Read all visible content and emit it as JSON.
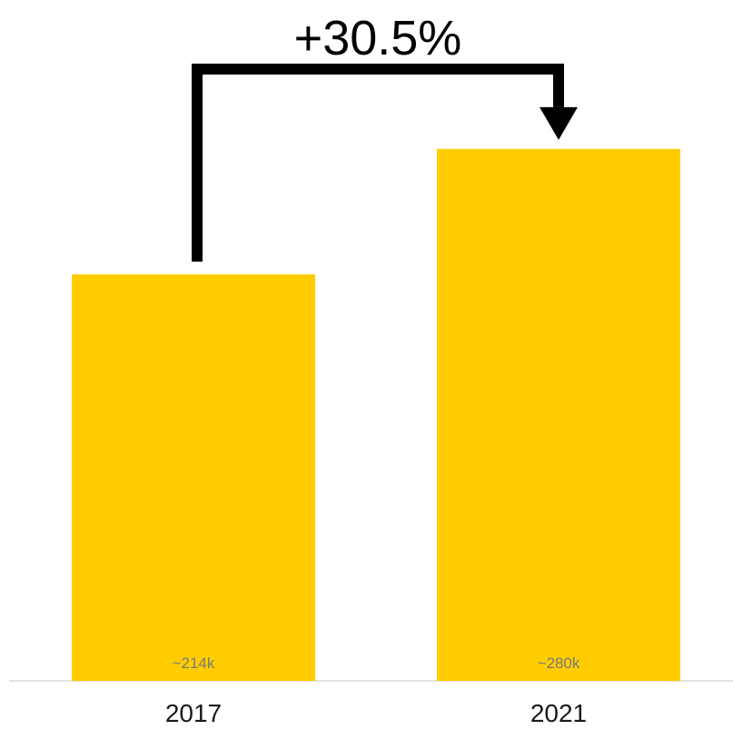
{
  "chart_data": {
    "type": "bar",
    "categories": [
      "2017",
      "2021"
    ],
    "values": [
      214,
      280
    ],
    "value_labels": [
      "~214k",
      "~280k"
    ],
    "annotation": "+30.5%",
    "ylim": [
      0,
      345
    ],
    "grid": false,
    "legend": "none",
    "colors": {
      "bar": "#FFCC00",
      "value_label": "#7a7a7a",
      "axis": "#d9d9d9",
      "arrow": "#000000",
      "text": "#1a1a1a"
    }
  }
}
